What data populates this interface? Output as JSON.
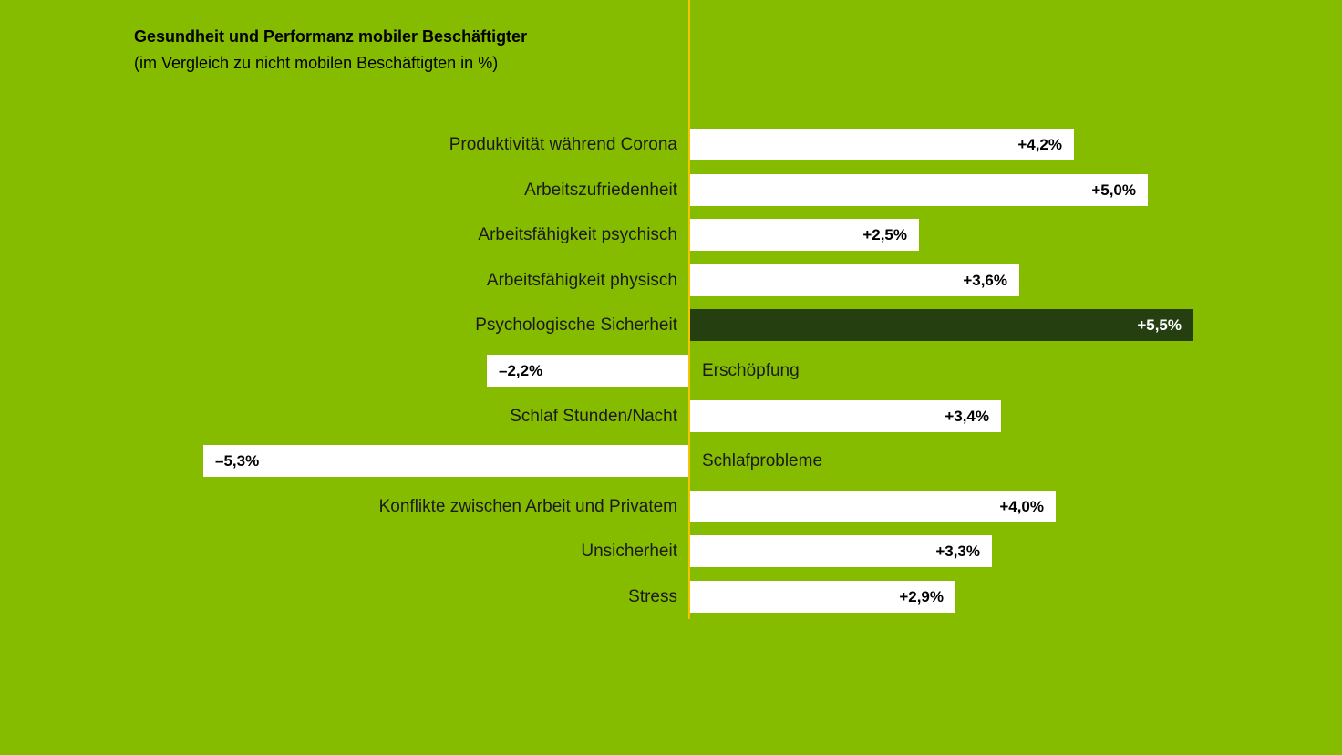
{
  "chart_data": {
    "type": "bar",
    "orientation": "horizontal",
    "title": "Gesundheit und Performanz mobiler Beschäftigter",
    "subtitle": "(im Vergleich zu nicht mobilen Beschäftigten in %)",
    "xlabel": "",
    "ylabel": "",
    "xlim": [
      -7,
      7
    ],
    "grid": false,
    "legend": "none",
    "categories": [
      "Produktivität während Corona",
      "Arbeitszufriedenheit",
      "Arbeitsfähigkeit psychisch",
      "Arbeitsfähigkeit physisch",
      "Psychologische Sicherheit",
      "Erschöpfung",
      "Schlaf Stunden/Nacht",
      "Schlafprobleme",
      "Konflikte zwischen Arbeit und Privatem",
      "Unsicherheit",
      "Stress"
    ],
    "values": [
      4.2,
      5.0,
      2.5,
      3.6,
      5.5,
      -2.2,
      3.4,
      -5.3,
      4.0,
      3.3,
      2.9
    ],
    "value_labels": [
      "+4,2%",
      "+5,0%",
      "+2,5%",
      "+3,6%",
      "+5,5%",
      "–2,2%",
      "+3,4%",
      "–5,3%",
      "+4,0%",
      "+3,3%",
      "+2,9%"
    ],
    "highlight": "Psychologische Sicherheit",
    "colors": {
      "background": "#86bc00",
      "bar": "#ffffff",
      "highlight_bar": "#263f10",
      "zero_line": "#f5c400"
    }
  }
}
